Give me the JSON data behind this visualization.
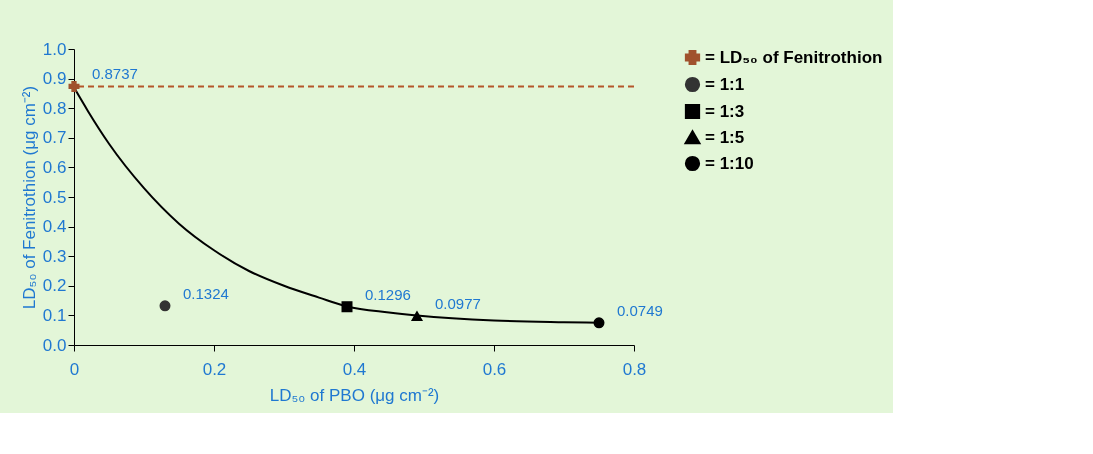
{
  "chart_data": {
    "type": "scatter",
    "xlabel": "LD₅₀ of PBO (μg cm⁻²)",
    "ylabel": "LD₅₀ of Fenitrothion (μg cm⁻²)",
    "xlim": [
      0,
      0.8
    ],
    "xticks": [
      {
        "value": 0,
        "label": "0"
      },
      0.2,
      0.4,
      0.6,
      0.8
    ],
    "ylim": [
      0,
      1.0
    ],
    "yticks": [
      {
        "value": 0,
        "label": "0.0"
      },
      0.1,
      0.2,
      0.3,
      0.4,
      0.5,
      0.6,
      0.7,
      0.8,
      0.9,
      {
        "value": 1.0,
        "label": "1.0"
      }
    ],
    "legend": "right",
    "series": [
      {
        "type": "line",
        "color": "#000000",
        "marker": "none",
        "line_style": "solid",
        "x": [
          0,
          0.02,
          0.05,
          0.1,
          0.15,
          0.2,
          0.25,
          0.3,
          0.35,
          0.39,
          0.45,
          0.49,
          0.6,
          0.7,
          0.75
        ],
        "values": [
          0.87,
          0.79,
          0.68,
          0.53,
          0.41,
          0.32,
          0.25,
          0.2,
          0.16,
          0.13,
          0.11,
          0.1,
          0.083,
          0.077,
          0.075
        ]
      },
      {
        "name": "= LD₅₀ of Fenitrothion",
        "color": "#a0522d",
        "marker": "cross",
        "x": [
          0
        ],
        "values": [
          0.8737
        ],
        "value_labels": [
          "0.8737"
        ]
      },
      {
        "name": "= 1:1",
        "color": "#333333",
        "marker": "circle",
        "x": [
          0.13
        ],
        "values": [
          0.1324
        ],
        "value_labels": [
          "0.1324"
        ]
      },
      {
        "name": "= 1:3",
        "color": "#000000",
        "marker": "square",
        "x": [
          0.39
        ],
        "values": [
          0.1296
        ],
        "value_labels": [
          "0.1296"
        ]
      },
      {
        "name": "= 1:5",
        "color": "#000000",
        "marker": "triangle",
        "x": [
          0.49
        ],
        "values": [
          0.0977
        ],
        "value_labels": [
          "0.0977"
        ]
      },
      {
        "name": "= 1:10",
        "color": "#000000",
        "marker": "circle",
        "x": [
          0.75
        ],
        "values": [
          0.0749
        ],
        "value_labels": [
          "0.0749"
        ]
      }
    ],
    "ref_lines": [
      {
        "axis": "y",
        "value": 0.8737,
        "color": "#b5562a",
        "line_style": "dashed"
      }
    ]
  }
}
